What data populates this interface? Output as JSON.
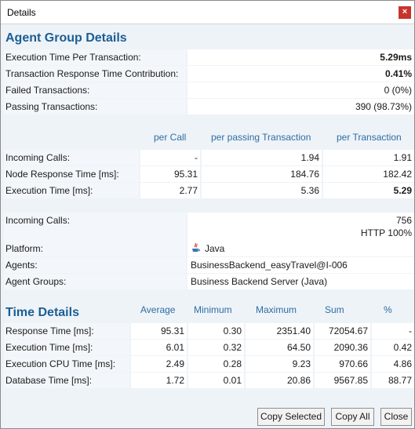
{
  "window": {
    "title": "Details",
    "close_icon": "close-icon"
  },
  "agent_group": {
    "title": "Agent Group Details",
    "rows": [
      {
        "label": "Execution Time Per Transaction:",
        "value": "5.29ms"
      },
      {
        "label": "Transaction Response Time Contribution:",
        "value": "0.41%"
      },
      {
        "label": "Failed Transactions:",
        "value": "0 (0%)"
      },
      {
        "label": "Passing Transactions:",
        "value": "390 (98.73%)"
      }
    ]
  },
  "per_table": {
    "headers": [
      "per Call",
      "per passing Transaction",
      "per Transaction"
    ],
    "rows": [
      {
        "label": "Incoming Calls:",
        "values": [
          "-",
          "1.94",
          "1.91"
        ]
      },
      {
        "label": "Node Response Time [ms]:",
        "values": [
          "95.31",
          "184.76",
          "182.42"
        ]
      },
      {
        "label": "Execution Time [ms]:",
        "values": [
          "2.77",
          "5.36",
          "5.29"
        ]
      }
    ]
  },
  "info": {
    "incoming_calls_label": "Incoming Calls:",
    "incoming_calls_line1": "756",
    "incoming_calls_line2": "HTTP 100%",
    "platform_label": "Platform:",
    "platform_value": "Java",
    "platform_icon": "java-icon",
    "agents_label": "Agents:",
    "agents_value": "BusinessBackend_easyTravel@I-006",
    "agent_groups_label": "Agent Groups:",
    "agent_groups_value": "Business Backend Server (Java)"
  },
  "time_details": {
    "title": "Time Details",
    "headers": [
      "Average",
      "Minimum",
      "Maximum",
      "Sum",
      "%"
    ],
    "rows": [
      {
        "label": "Response Time [ms]:",
        "values": [
          "95.31",
          "0.30",
          "2351.40",
          "72054.67",
          "-"
        ]
      },
      {
        "label": "Execution Time [ms]:",
        "values": [
          "6.01",
          "0.32",
          "64.50",
          "2090.36",
          "0.42"
        ]
      },
      {
        "label": "Execution CPU Time [ms]:",
        "values": [
          "2.49",
          "0.28",
          "9.23",
          "970.66",
          "4.86"
        ]
      },
      {
        "label": "Database Time [ms]:",
        "values": [
          "1.72",
          "0.01",
          "20.86",
          "9567.85",
          "88.77"
        ]
      }
    ]
  },
  "buttons": {
    "copy_selected": "Copy Selected",
    "copy_all": "Copy All",
    "close": "Close"
  }
}
